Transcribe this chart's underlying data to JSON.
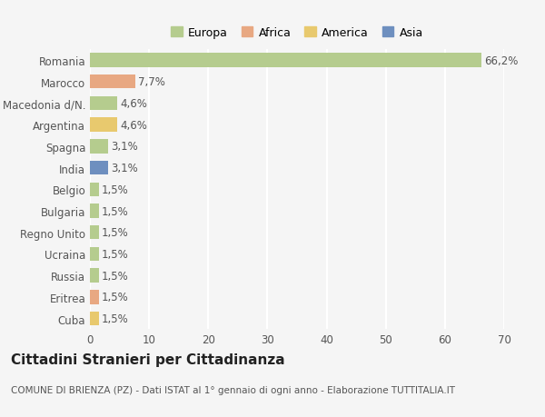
{
  "countries": [
    "Romania",
    "Marocco",
    "Macedonia d/N.",
    "Argentina",
    "Spagna",
    "India",
    "Belgio",
    "Bulgaria",
    "Regno Unito",
    "Ucraina",
    "Russia",
    "Eritrea",
    "Cuba"
  ],
  "values": [
    66.2,
    7.7,
    4.6,
    4.6,
    3.1,
    3.1,
    1.5,
    1.5,
    1.5,
    1.5,
    1.5,
    1.5,
    1.5
  ],
  "labels": [
    "66,2%",
    "7,7%",
    "4,6%",
    "4,6%",
    "3,1%",
    "3,1%",
    "1,5%",
    "1,5%",
    "1,5%",
    "1,5%",
    "1,5%",
    "1,5%",
    "1,5%"
  ],
  "colors": [
    "#b5cc8e",
    "#e8a882",
    "#b5cc8e",
    "#e8c96e",
    "#b5cc8e",
    "#6e8fbf",
    "#b5cc8e",
    "#b5cc8e",
    "#b5cc8e",
    "#b5cc8e",
    "#b5cc8e",
    "#e8a882",
    "#e8c96e"
  ],
  "legend_labels": [
    "Europa",
    "Africa",
    "America",
    "Asia"
  ],
  "legend_colors": [
    "#b5cc8e",
    "#e8a882",
    "#e8c96e",
    "#6e8fbf"
  ],
  "xlim": [
    0,
    70
  ],
  "xticks": [
    0,
    10,
    20,
    30,
    40,
    50,
    60,
    70
  ],
  "title": "Cittadini Stranieri per Cittadinanza",
  "subtitle": "COMUNE DI BRIENZA (PZ) - Dati ISTAT al 1° gennaio di ogni anno - Elaborazione TUTTITALIA.IT",
  "bg_color": "#f5f5f5",
  "grid_color": "#ffffff",
  "bar_height": 0.65,
  "label_fontsize": 8.5,
  "tick_fontsize": 8.5,
  "title_fontsize": 11,
  "subtitle_fontsize": 7.5
}
